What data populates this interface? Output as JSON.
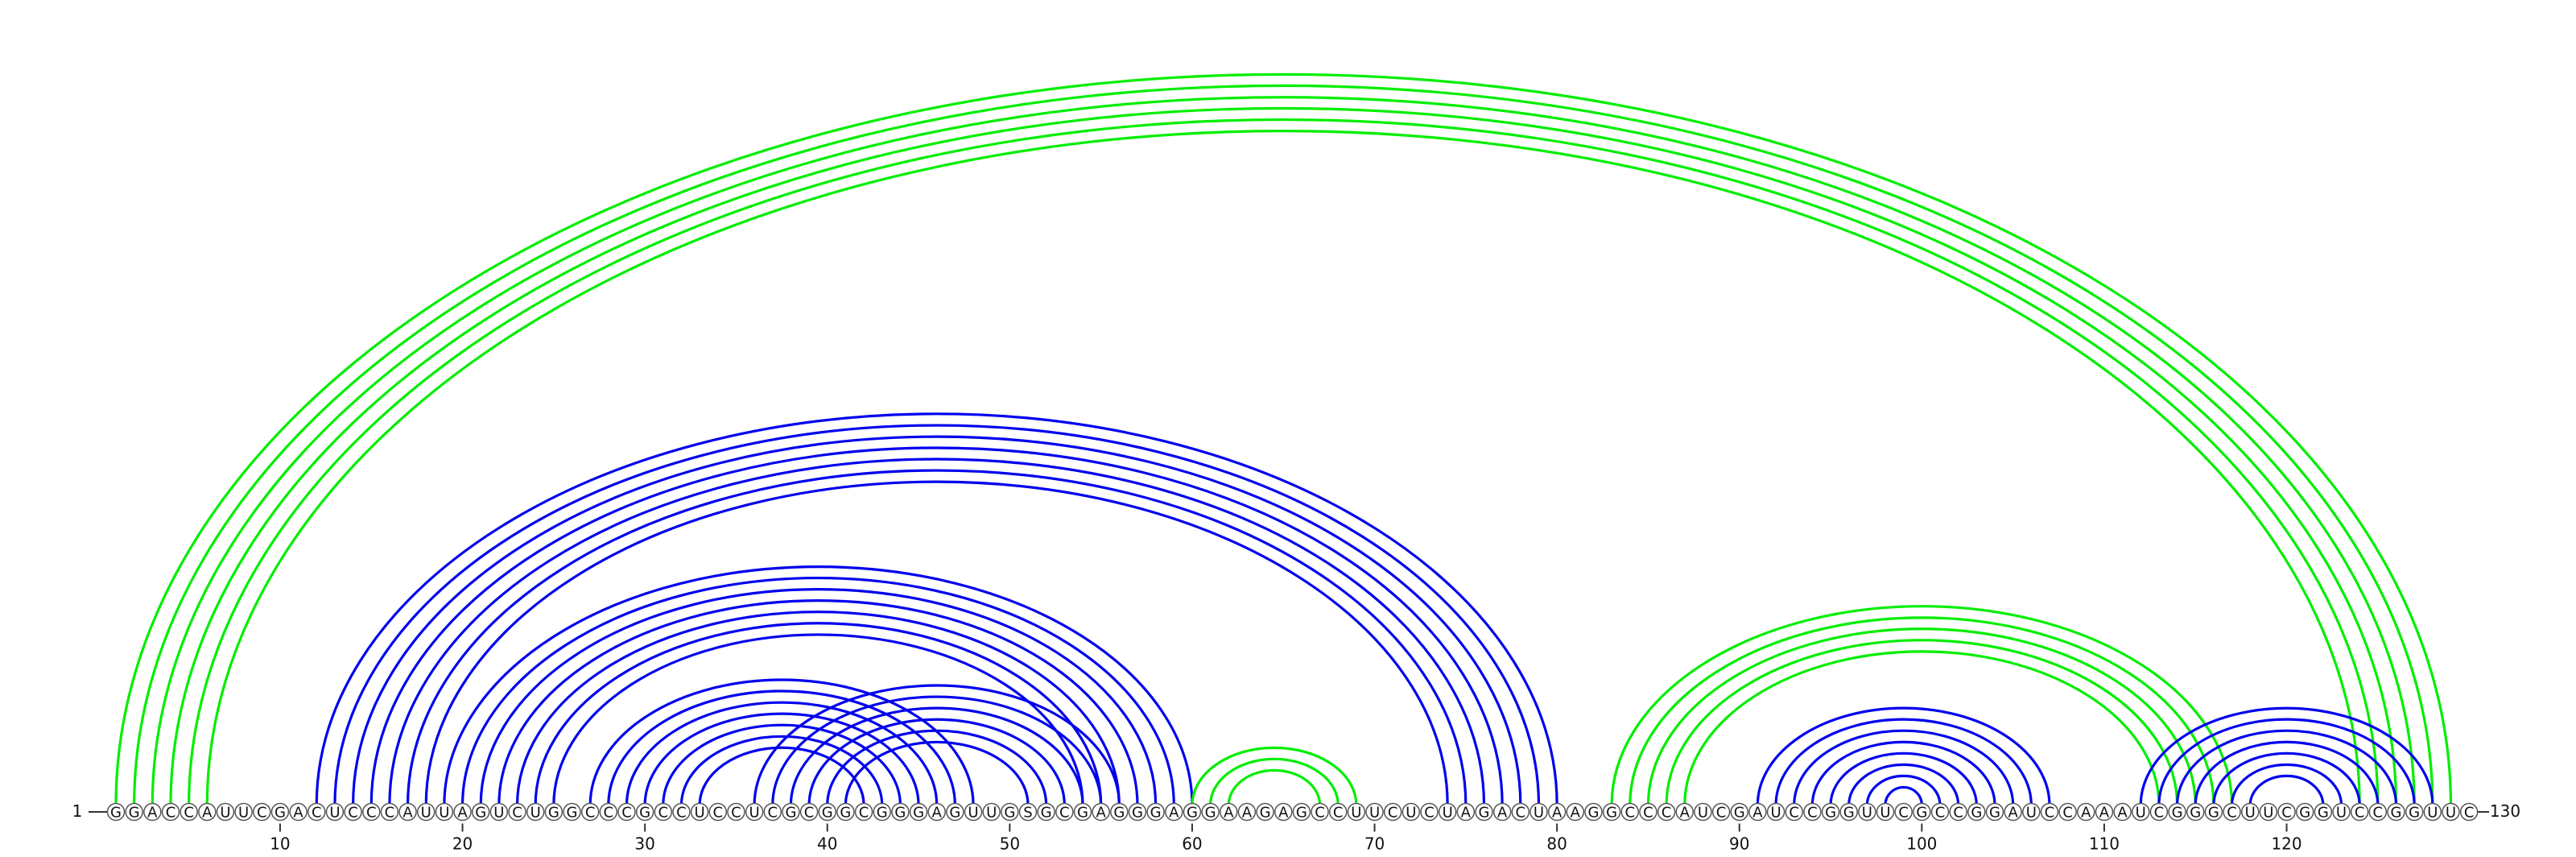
{
  "sequence": "GGACCAUUCGACUCCCAUUAGUCUGGCCCGCCUCCUCGCGGCGGGAGUUGSGCGAGGGAGGAAGAGCCUUCUCUAGACUAAGGCCCAUCGAUCCGGUUCGCCGGAUCCAAAUCGGGCUUCGGUCCGGUUC",
  "start_label": "1",
  "end_label": "130",
  "ticks": [
    {
      "pos": 10,
      "label": "10"
    },
    {
      "pos": 20,
      "label": "20"
    },
    {
      "pos": 30,
      "label": "30"
    },
    {
      "pos": 40,
      "label": "40"
    },
    {
      "pos": 50,
      "label": "50"
    },
    {
      "pos": 60,
      "label": "60"
    },
    {
      "pos": 70,
      "label": "70"
    },
    {
      "pos": 80,
      "label": "80"
    },
    {
      "pos": 90,
      "label": "90"
    },
    {
      "pos": 100,
      "label": "100"
    },
    {
      "pos": 110,
      "label": "110"
    },
    {
      "pos": 120,
      "label": "120"
    }
  ],
  "colors": {
    "blue": "#0000ee",
    "green": "#00ee00",
    "stroke": "#555555"
  },
  "helices": [
    {
      "color": "green",
      "side": "top",
      "pairs": [
        [
          1,
          129
        ],
        [
          2,
          128
        ],
        [
          3,
          127
        ],
        [
          4,
          126
        ],
        [
          5,
          125
        ],
        [
          6,
          124
        ]
      ]
    },
    {
      "color": "blue",
      "side": "top",
      "pairs": [
        [
          12,
          80
        ],
        [
          13,
          79
        ],
        [
          14,
          78
        ],
        [
          15,
          77
        ],
        [
          16,
          76
        ],
        [
          17,
          75
        ],
        [
          18,
          74
        ]
      ]
    },
    {
      "color": "blue",
      "side": "top",
      "pairs": [
        [
          19,
          60
        ],
        [
          20,
          59
        ],
        [
          21,
          58
        ],
        [
          22,
          57
        ],
        [
          23,
          56
        ],
        [
          24,
          55
        ],
        [
          25,
          54
        ]
      ]
    },
    {
      "color": "blue",
      "side": "top",
      "pairs": [
        [
          27,
          48
        ],
        [
          28,
          47
        ],
        [
          29,
          46
        ],
        [
          30,
          45
        ],
        [
          31,
          44
        ],
        [
          32,
          43
        ],
        [
          33,
          42
        ]
      ]
    },
    {
      "color": "blue",
      "side": "top",
      "pairs": [
        [
          36,
          56
        ],
        [
          37,
          55
        ],
        [
          38,
          54
        ],
        [
          39,
          53
        ],
        [
          40,
          52
        ],
        [
          41,
          51
        ]
      ]
    },
    {
      "color": "green",
      "side": "top",
      "pairs": [
        [
          60,
          69
        ],
        [
          61,
          68
        ],
        [
          62,
          67
        ]
      ]
    },
    {
      "color": "green",
      "side": "top",
      "pairs": [
        [
          83,
          117
        ],
        [
          84,
          116
        ],
        [
          85,
          115
        ],
        [
          86,
          114
        ],
        [
          87,
          113
        ]
      ]
    },
    {
      "color": "blue",
      "side": "top",
      "pairs": [
        [
          91,
          107
        ],
        [
          92,
          106
        ],
        [
          93,
          105
        ],
        [
          94,
          104
        ],
        [
          95,
          103
        ],
        [
          96,
          102
        ],
        [
          97,
          101
        ],
        [
          98,
          100
        ]
      ]
    },
    {
      "color": "blue",
      "side": "top",
      "pairs": [
        [
          112,
          128
        ],
        [
          113,
          127
        ],
        [
          114,
          126
        ],
        [
          115,
          125
        ],
        [
          116,
          124
        ],
        [
          117,
          123
        ],
        [
          118,
          122
        ]
      ]
    }
  ]
}
